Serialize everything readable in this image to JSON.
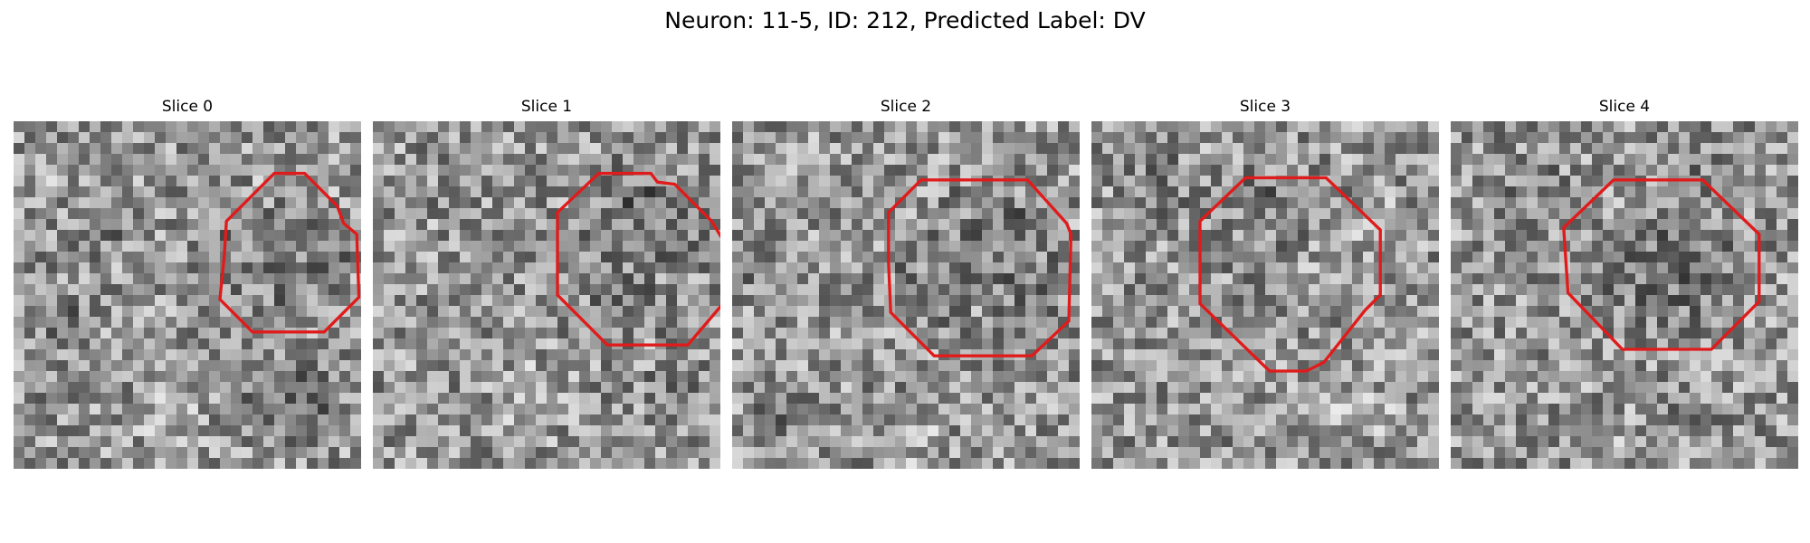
{
  "title": "Neuron: 11-5, ID: 212, Predicted Label: DV",
  "overlay_color": "#e01b1b",
  "colormap": "gray",
  "panels": [
    {
      "label": "Slice 0",
      "seed": 11,
      "contour": [
        [
          9.8,
          4.6
        ],
        [
          12.0,
          2.4
        ],
        [
          13.4,
          2.4
        ],
        [
          14.9,
          3.9
        ],
        [
          15.2,
          4.7
        ],
        [
          15.8,
          5.2
        ],
        [
          15.9,
          8.1
        ],
        [
          14.3,
          9.7
        ],
        [
          12.5,
          9.7
        ],
        [
          11.0,
          9.7
        ],
        [
          9.5,
          8.2
        ],
        [
          9.7,
          6.2
        ]
      ]
    },
    {
      "label": "Slice 1",
      "seed": 23,
      "contour": [
        [
          8.5,
          4.2
        ],
        [
          10.4,
          2.4
        ],
        [
          12.8,
          2.4
        ],
        [
          13.1,
          2.8
        ],
        [
          13.9,
          2.9
        ],
        [
          15.6,
          4.6
        ],
        [
          16.2,
          5.6
        ],
        [
          16.2,
          8.3
        ],
        [
          14.5,
          10.3
        ],
        [
          12.5,
          10.3
        ],
        [
          10.8,
          10.3
        ],
        [
          8.5,
          8.0
        ]
      ]
    },
    {
      "label": "Slice 2",
      "seed": 37,
      "contour": [
        [
          7.2,
          4.2
        ],
        [
          8.7,
          2.7
        ],
        [
          11.1,
          2.7
        ],
        [
          13.6,
          2.7
        ],
        [
          15.4,
          4.7
        ],
        [
          15.6,
          5.2
        ],
        [
          15.5,
          9.2
        ],
        [
          13.8,
          10.8
        ],
        [
          11.1,
          10.8
        ],
        [
          9.3,
          10.8
        ],
        [
          7.3,
          8.8
        ],
        [
          7.2,
          6.5
        ]
      ]
    },
    {
      "label": "Slice 3",
      "seed": 51,
      "contour": [
        [
          5.0,
          4.6
        ],
        [
          7.1,
          2.6
        ],
        [
          10.8,
          2.6
        ],
        [
          13.3,
          5.0
        ],
        [
          13.3,
          8.0
        ],
        [
          12.6,
          8.7
        ],
        [
          10.7,
          11.1
        ],
        [
          9.9,
          11.5
        ],
        [
          8.2,
          11.5
        ],
        [
          5.0,
          8.4
        ]
      ]
    },
    {
      "label": "Slice 4",
      "seed": 67,
      "contour": [
        [
          5.2,
          4.9
        ],
        [
          7.5,
          2.7
        ],
        [
          11.6,
          2.7
        ],
        [
          14.2,
          5.2
        ],
        [
          14.2,
          8.3
        ],
        [
          12.0,
          10.5
        ],
        [
          7.9,
          10.5
        ],
        [
          5.4,
          7.9
        ]
      ]
    }
  ]
}
